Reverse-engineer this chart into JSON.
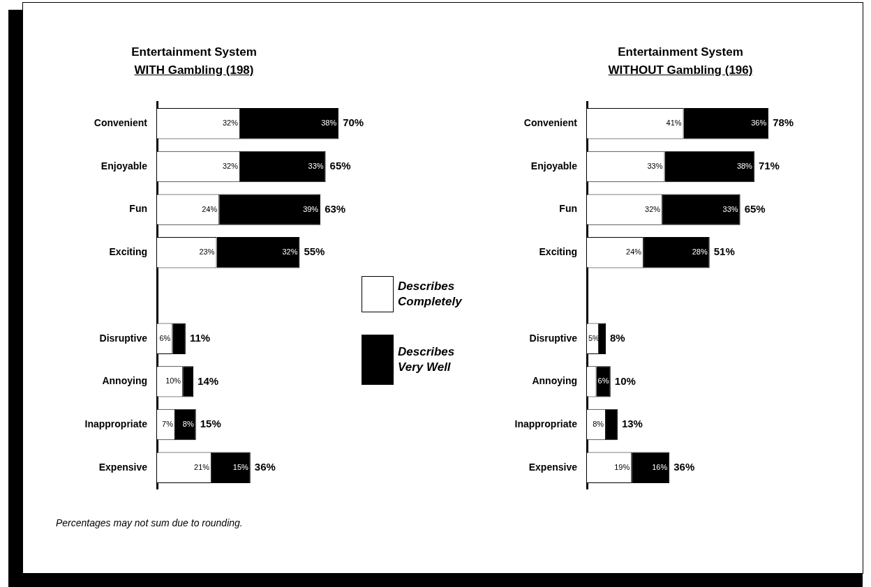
{
  "chart_data": [
    {
      "type": "bar",
      "orientation": "horizontal",
      "stacked": true,
      "title": "Entertainment System",
      "subtitle": "WITH Gambling (198)",
      "legend": "right",
      "categories": [
        "Convenient",
        "Enjoyable",
        "Fun",
        "Exciting",
        null,
        "Disruptive",
        "Annoying",
        "Inappropriate",
        "Expensive"
      ],
      "series": [
        {
          "name": "Describes Completely",
          "color": "#ffffff",
          "values": [
            32,
            32,
            24,
            23,
            null,
            6,
            10,
            7,
            21
          ],
          "value_labels": [
            "32%",
            "32%",
            "24%",
            "23%",
            null,
            "6%",
            "10%",
            "7%",
            "21%"
          ]
        },
        {
          "name": "Describes Very Well",
          "color": "#000000",
          "values": [
            38,
            33,
            39,
            32,
            null,
            5,
            4,
            8,
            15
          ],
          "value_labels": [
            "38%",
            "33%",
            "39%",
            "32%",
            null,
            null,
            null,
            "8%",
            "15%"
          ]
        }
      ],
      "totals": [
        "70%",
        "65%",
        "63%",
        "55%",
        null,
        "11%",
        "14%",
        "15%",
        "36%"
      ],
      "annotations": [
        "Percentages may not sum due to rounding."
      ]
    },
    {
      "type": "bar",
      "orientation": "horizontal",
      "stacked": true,
      "title": "Entertainment System",
      "subtitle": "WITHOUT Gambling (196)",
      "categories": [
        "Convenient",
        "Enjoyable",
        "Fun",
        "Exciting",
        null,
        "Disruptive",
        "Annoying",
        "Inappropriate",
        "Expensive"
      ],
      "series": [
        {
          "color": "#ffffff",
          "values": [
            41,
            33,
            32,
            24,
            null,
            5,
            4,
            8,
            19
          ],
          "value_labels": [
            "41%",
            "33%",
            "32%",
            "24%",
            null,
            "5%",
            null,
            "8%",
            "19%"
          ]
        },
        {
          "color": "#000000",
          "values": [
            36,
            38,
            33,
            28,
            null,
            3,
            6,
            5,
            16
          ],
          "value_labels": [
            "36%",
            "38%",
            "33%",
            "28%",
            null,
            null,
            "6%",
            null,
            "16%"
          ]
        }
      ],
      "totals": [
        "78%",
        "71%",
        "65%",
        "51%",
        null,
        "8%",
        "10%",
        "13%",
        "36%"
      ]
    }
  ]
}
